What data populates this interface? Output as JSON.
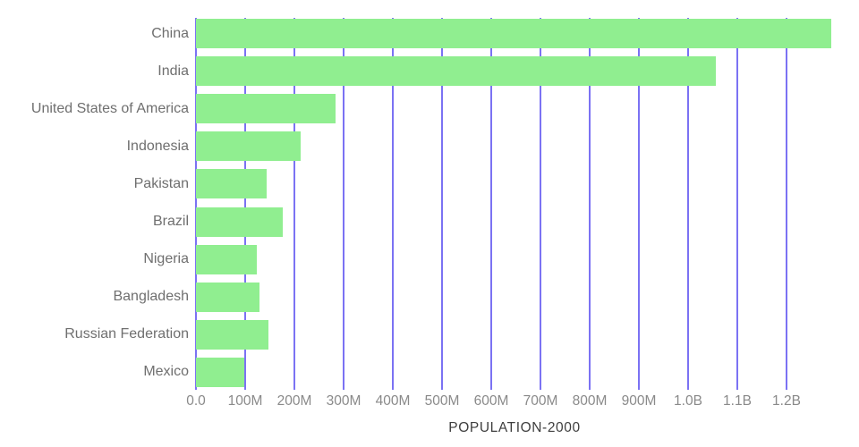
{
  "chart_data": {
    "type": "bar",
    "orientation": "horizontal",
    "title": "POPULATION-2000",
    "categories": [
      "China",
      "India",
      "United States of America",
      "Indonesia",
      "Pakistan",
      "Brazil",
      "Nigeria",
      "Bangladesh",
      "Russian Federation",
      "Mexico"
    ],
    "values_millions": [
      1291,
      1057,
      283,
      213,
      143,
      176,
      124,
      129,
      147,
      98
    ],
    "series": [
      {
        "name": "Population 2000",
        "values_millions": [
          1291,
          1057,
          283,
          213,
          143,
          176,
          124,
          129,
          147,
          98
        ]
      }
    ],
    "x_axis": {
      "label": "POPULATION-2000",
      "tick_labels": [
        "0.0",
        "100M",
        "200M",
        "300M",
        "400M",
        "500M",
        "600M",
        "700M",
        "800M",
        "900M",
        "1.0B",
        "1.1B",
        "1.2B"
      ],
      "tick_values_millions": [
        0,
        100,
        200,
        300,
        400,
        500,
        600,
        700,
        800,
        900,
        1000,
        1100,
        1200
      ],
      "range_millions": [
        0,
        1294
      ]
    },
    "y_axis": {
      "label": ""
    },
    "grid": true,
    "legend": false,
    "colors": {
      "bar": "#90EE90",
      "gridline": "#7B72F3",
      "category_label": "#6F6F6F",
      "tick_label": "#8A8A8A",
      "title": "#3E3E3E",
      "background": "#FFFFFF"
    }
  }
}
